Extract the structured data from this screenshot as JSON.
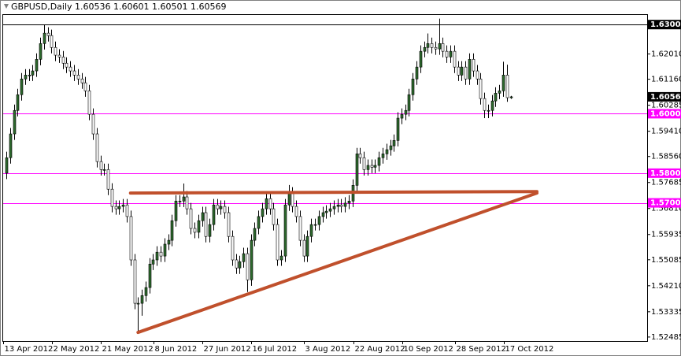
{
  "chart_data": {
    "type": "candlestick",
    "title": "GBPUSD,Daily 1.60536 1.60601 1.60501 1.60569",
    "categories": [
      "13 Apr 2012",
      null,
      null,
      null,
      null,
      null,
      null,
      null,
      null,
      null,
      null,
      null,
      null,
      "2 May 2012",
      null,
      null,
      null,
      null,
      null,
      null,
      null,
      null,
      null,
      null,
      null,
      null,
      "21 May 2012",
      null,
      null,
      null,
      null,
      null,
      null,
      null,
      null,
      null,
      null,
      null,
      null,
      null,
      "8 Jun 2012",
      null,
      null,
      null,
      null,
      null,
      null,
      null,
      null,
      null,
      null,
      null,
      null,
      "27 Jun 2012",
      null,
      null,
      null,
      null,
      null,
      null,
      null,
      null,
      null,
      null,
      null,
      null,
      "16 Jul 2012",
      null,
      null,
      null,
      null,
      null,
      null,
      null,
      null,
      null,
      null,
      null,
      null,
      null,
      "3 Aug 2012",
      null,
      null,
      null,
      null,
      null,
      null,
      null,
      null,
      null,
      null,
      null,
      null,
      "22 Aug 2012",
      null,
      null,
      null,
      null,
      null,
      null,
      null,
      null,
      null,
      null,
      null,
      null,
      "10 Sep 2012",
      null,
      null,
      null,
      null,
      null,
      null,
      null,
      null,
      null,
      null,
      null,
      null,
      null,
      "28 Sep 2012",
      null,
      null,
      null,
      null,
      null,
      null,
      null,
      null,
      null,
      null,
      null,
      null,
      "17 Oct 2012",
      null
    ],
    "open": [
      1.58,
      1.5852,
      1.5932,
      1.6011,
      1.6064,
      1.6117,
      1.613,
      1.613,
      1.6144,
      1.6183,
      1.6236,
      1.6271,
      1.6263,
      1.6223,
      1.6197,
      1.6191,
      1.617,
      1.6157,
      1.6144,
      1.613,
      1.6117,
      1.6104,
      1.6077,
      1.5998,
      1.5932,
      1.5839,
      1.5812,
      1.5812,
      1.5746,
      1.5688,
      1.568,
      1.5688,
      1.5693,
      1.5654,
      1.5508,
      1.5362,
      1.5362,
      1.5388,
      1.5415,
      1.5494,
      1.5508,
      1.5534,
      1.5521,
      1.5561,
      1.5574,
      1.564,
      1.5706,
      1.5706,
      1.572,
      1.568,
      1.5614,
      1.5601,
      1.564,
      1.5667,
      1.5587,
      1.5627,
      1.5693,
      1.568,
      1.5688,
      1.5667,
      1.5587,
      1.5508,
      1.5481,
      1.5502,
      1.5529,
      1.5441,
      1.5574,
      1.5614,
      1.5654,
      1.568,
      1.5714,
      1.568,
      1.5627,
      1.5508,
      1.5521,
      1.5693,
      1.5733,
      1.5688,
      1.5654,
      1.5574,
      1.5521,
      1.5587,
      1.5627,
      1.5627,
      1.5654,
      1.5667,
      1.5672,
      1.568,
      1.5688,
      1.5693,
      1.5688,
      1.5699,
      1.5706,
      1.5759,
      1.5865,
      1.5852,
      1.5812,
      1.5826,
      1.582,
      1.5826,
      1.5852,
      1.5865,
      1.5879,
      1.5892,
      1.591,
      1.5985,
      1.5998,
      1.6011,
      1.6064,
      1.6117,
      1.6157,
      1.621,
      1.6223,
      1.6236,
      1.6223,
      1.6218,
      1.6236,
      1.621,
      1.6191,
      1.621,
      1.6157,
      1.613,
      1.6157,
      1.6117,
      1.6183,
      1.6144,
      1.6117,
      1.6051,
      1.6011,
      1.6011,
      1.6043,
      1.6069,
      1.6077,
      1.613,
      1.60536
    ],
    "high": [
      1.5872,
      1.5952,
      1.6031,
      1.6084,
      1.6137,
      1.615,
      1.615,
      1.6164,
      1.6203,
      1.6256,
      1.63,
      1.6291,
      1.6283,
      1.6243,
      1.6217,
      1.6211,
      1.619,
      1.6177,
      1.6164,
      1.615,
      1.6137,
      1.6124,
      1.6097,
      1.6018,
      1.5952,
      1.5859,
      1.5832,
      1.5832,
      1.5766,
      1.5708,
      1.5708,
      1.5713,
      1.5713,
      1.5674,
      1.5528,
      1.5382,
      1.5408,
      1.5435,
      1.5514,
      1.5528,
      1.5554,
      1.5554,
      1.5581,
      1.5594,
      1.566,
      1.5726,
      1.5726,
      1.5765,
      1.574,
      1.57,
      1.5634,
      1.566,
      1.5687,
      1.5687,
      1.5647,
      1.5713,
      1.5713,
      1.5708,
      1.5708,
      1.5687,
      1.5607,
      1.5528,
      1.5522,
      1.5549,
      1.5549,
      1.5594,
      1.5634,
      1.5674,
      1.57,
      1.5734,
      1.5734,
      1.57,
      1.5647,
      1.5541,
      1.5713,
      1.576,
      1.5753,
      1.5708,
      1.5674,
      1.5594,
      1.5607,
      1.5647,
      1.5647,
      1.5674,
      1.5687,
      1.5692,
      1.57,
      1.5708,
      1.5713,
      1.5713,
      1.5719,
      1.5726,
      1.5779,
      1.5885,
      1.5885,
      1.5872,
      1.5846,
      1.5846,
      1.5846,
      1.5872,
      1.5885,
      1.5899,
      1.5912,
      1.593,
      1.6005,
      1.6018,
      1.6031,
      1.6084,
      1.6137,
      1.6177,
      1.623,
      1.6243,
      1.627,
      1.6256,
      1.6243,
      1.632,
      1.6256,
      1.623,
      1.623,
      1.623,
      1.6177,
      1.6177,
      1.6177,
      1.6203,
      1.6203,
      1.6164,
      1.6137,
      1.6071,
      1.6031,
      1.6063,
      1.6089,
      1.6097,
      1.6175,
      1.6165,
      1.60601
    ],
    "low": [
      1.578,
      1.5832,
      1.5912,
      1.5991,
      1.6044,
      1.6097,
      1.611,
      1.611,
      1.6124,
      1.6163,
      1.6216,
      1.6243,
      1.6203,
      1.6177,
      1.6171,
      1.615,
      1.6137,
      1.6124,
      1.611,
      1.6097,
      1.6084,
      1.6057,
      1.5978,
      1.5912,
      1.5819,
      1.5792,
      1.5792,
      1.5726,
      1.5668,
      1.566,
      1.566,
      1.5668,
      1.5634,
      1.5488,
      1.5342,
      1.5265,
      1.532,
      1.5368,
      1.5395,
      1.5474,
      1.5488,
      1.5501,
      1.5501,
      1.5541,
      1.5554,
      1.562,
      1.5686,
      1.5686,
      1.566,
      1.5594,
      1.5581,
      1.5581,
      1.562,
      1.5567,
      1.5567,
      1.5607,
      1.566,
      1.566,
      1.5647,
      1.5567,
      1.5488,
      1.5461,
      1.5461,
      1.5482,
      1.54,
      1.5421,
      1.5554,
      1.5594,
      1.5634,
      1.566,
      1.566,
      1.5607,
      1.5488,
      1.5488,
      1.5501,
      1.5673,
      1.5668,
      1.5634,
      1.5554,
      1.5501,
      1.5501,
      1.5567,
      1.5607,
      1.5607,
      1.5634,
      1.5647,
      1.5652,
      1.566,
      1.5668,
      1.5668,
      1.5668,
      1.5679,
      1.5686,
      1.5739,
      1.5832,
      1.5792,
      1.5792,
      1.58,
      1.58,
      1.5806,
      1.5832,
      1.5845,
      1.5859,
      1.5872,
      1.589,
      1.5965,
      1.5978,
      1.5991,
      1.6044,
      1.6097,
      1.6137,
      1.619,
      1.6203,
      1.6203,
      1.6198,
      1.6198,
      1.619,
      1.6171,
      1.6171,
      1.6137,
      1.611,
      1.611,
      1.6097,
      1.6097,
      1.6124,
      1.6097,
      1.6031,
      1.5985,
      1.5985,
      1.5991,
      1.6023,
      1.6049,
      1.6057,
      1.604,
      1.60501
    ],
    "close": [
      1.5852,
      1.5932,
      1.6011,
      1.6064,
      1.6117,
      1.613,
      1.613,
      1.6144,
      1.6183,
      1.6236,
      1.6271,
      1.6263,
      1.6223,
      1.6197,
      1.6191,
      1.617,
      1.6157,
      1.6144,
      1.613,
      1.6117,
      1.6104,
      1.6077,
      1.5998,
      1.5932,
      1.5839,
      1.5812,
      1.5812,
      1.5746,
      1.5688,
      1.568,
      1.5688,
      1.5693,
      1.5654,
      1.5508,
      1.5362,
      1.5362,
      1.5388,
      1.5415,
      1.5494,
      1.5508,
      1.5534,
      1.5521,
      1.5561,
      1.5574,
      1.564,
      1.5706,
      1.5706,
      1.572,
      1.568,
      1.5614,
      1.5601,
      1.564,
      1.5667,
      1.5587,
      1.5627,
      1.5693,
      1.568,
      1.5688,
      1.5667,
      1.5587,
      1.5508,
      1.5481,
      1.5502,
      1.5529,
      1.5441,
      1.5574,
      1.5614,
      1.5654,
      1.568,
      1.5714,
      1.568,
      1.5627,
      1.5508,
      1.5521,
      1.5693,
      1.5733,
      1.5688,
      1.5654,
      1.5574,
      1.5521,
      1.5587,
      1.5627,
      1.5627,
      1.5654,
      1.5667,
      1.5672,
      1.568,
      1.5688,
      1.5693,
      1.5688,
      1.5699,
      1.5706,
      1.5759,
      1.5865,
      1.5852,
      1.5812,
      1.5826,
      1.582,
      1.5826,
      1.5852,
      1.5865,
      1.5879,
      1.5892,
      1.591,
      1.5985,
      1.5998,
      1.6011,
      1.6064,
      1.6117,
      1.6157,
      1.621,
      1.6223,
      1.6236,
      1.6223,
      1.6218,
      1.6236,
      1.621,
      1.6191,
      1.621,
      1.6157,
      1.613,
      1.6157,
      1.6117,
      1.6183,
      1.6144,
      1.6117,
      1.6051,
      1.6011,
      1.6011,
      1.6043,
      1.6069,
      1.6077,
      1.613,
      1.6054,
      1.60569
    ],
    "colors": {
      "up": "#2d6a2d",
      "down": "#ffffff",
      "wick": "#000000",
      "trendline": "#c0502c"
    },
    "ylim": [
      1.5235,
      1.6335
    ],
    "yticks": [
      {
        "value": 1.6201,
        "label": "1.62010"
      },
      {
        "value": 1.6116,
        "label": "1.61160"
      },
      {
        "value": 1.60285,
        "label": "1.60285"
      },
      {
        "value": 1.5941,
        "label": "1.59410"
      },
      {
        "value": 1.5856,
        "label": "1.58560"
      },
      {
        "value": 1.57685,
        "label": "1.57685"
      },
      {
        "value": 1.5681,
        "label": "1.56810"
      },
      {
        "value": 1.55935,
        "label": "1.55935"
      },
      {
        "value": 1.55085,
        "label": "1.55085"
      },
      {
        "value": 1.5421,
        "label": "1.54210"
      },
      {
        "value": 1.53335,
        "label": "1.53335"
      },
      {
        "value": 1.52485,
        "label": "1.52485"
      }
    ],
    "hlines": [
      {
        "value": 1.63,
        "label": "1.63000",
        "color": "#000000"
      },
      {
        "value": 1.6,
        "label": "1.60000",
        "color": "#ff00ff"
      },
      {
        "value": 1.58,
        "label": "1.58000",
        "color": "#ff00ff"
      },
      {
        "value": 1.57,
        "label": "1.57000",
        "color": "#ff00ff"
      }
    ],
    "trendlines": [
      {
        "x": [
          33,
          141
        ],
        "y": [
          1.5733,
          1.5738
        ]
      },
      {
        "x": [
          35,
          141
        ],
        "y": [
          1.5264,
          1.5733
        ]
      }
    ]
  }
}
